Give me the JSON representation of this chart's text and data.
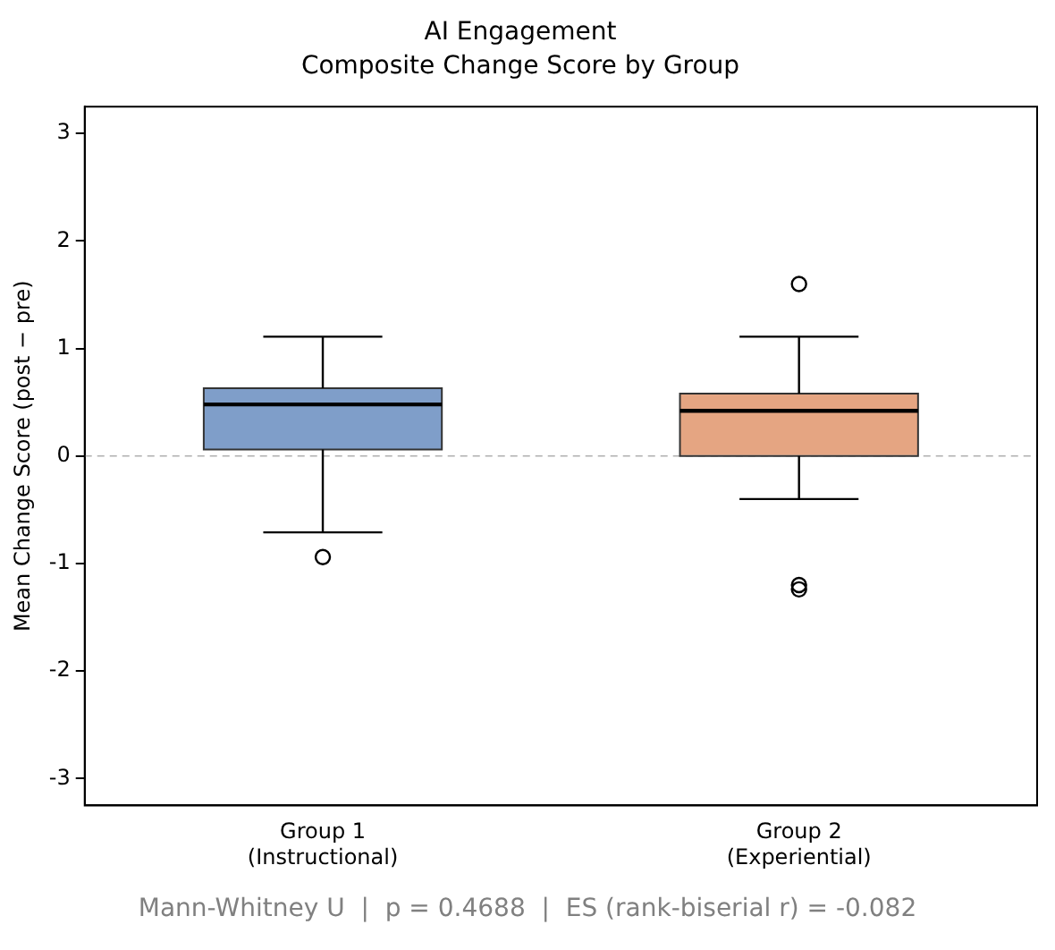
{
  "chart_data": {
    "type": "box",
    "title": "AI Engagement",
    "subtitle": "Composite Change Score by Group",
    "ylabel": "Mean Change Score (post − pre)",
    "categories": [
      "Group 1\n(Instructional)",
      "Group 2\n(Experiential)"
    ],
    "colors": [
      "#7f9ec9",
      "#e5a582"
    ],
    "boxes": [
      {
        "low": -0.71,
        "q1": 0.06,
        "median": 0.48,
        "q3": 0.63,
        "high": 1.11,
        "outliers": [
          -0.94
        ]
      },
      {
        "low": -0.4,
        "q1": 0.0,
        "median": 0.42,
        "q3": 0.58,
        "high": 1.11,
        "outliers": [
          1.6,
          -1.2,
          -1.24
        ]
      }
    ],
    "ylim": [
      -3.25,
      3.25
    ],
    "yticks": [
      -3,
      -2,
      -1,
      0,
      1,
      2,
      3
    ],
    "grid": false,
    "legend": false,
    "ref_lines": [
      {
        "axis": "y",
        "value": 0,
        "color": "#b0b0b0",
        "line_style": "dashed"
      }
    ],
    "annotations": [
      "Mann-Whitney U  |  p = 0.4688  |  ES (rank-biserial r) = -0.082"
    ]
  }
}
